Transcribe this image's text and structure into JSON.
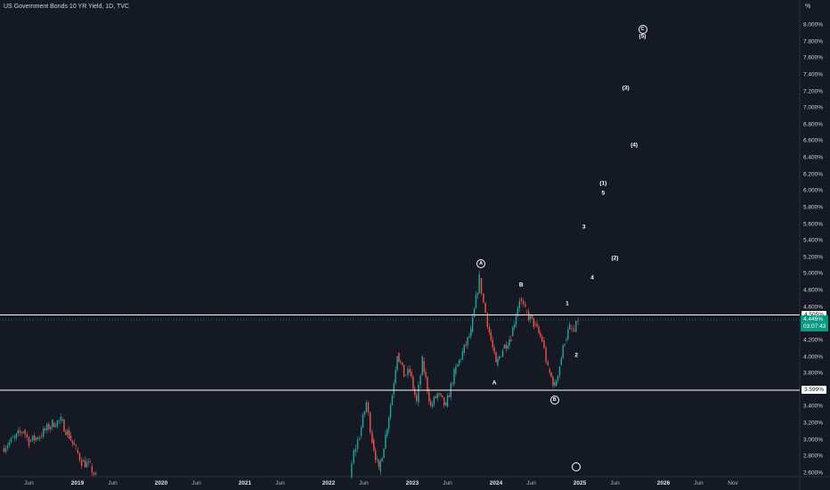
{
  "header": {
    "title": "US Government Bonds 10 YR Yield, 1D, TVC",
    "unit": "%"
  },
  "colors": {
    "background": "#151924",
    "up": "#26a69a",
    "down": "#ef5350",
    "level": "#ffffff",
    "current": "#089981"
  },
  "chart_data": {
    "type": "candlestick",
    "ylim": [
      2.5,
      8.2
    ],
    "y_ticks": [
      "8.000%",
      "7.800%",
      "7.600%",
      "7.400%",
      "7.200%",
      "7.000%",
      "6.800%",
      "6.600%",
      "6.400%",
      "6.200%",
      "6.000%",
      "5.800%",
      "5.600%",
      "5.400%",
      "5.200%",
      "5.000%",
      "4.800%",
      "4.600%",
      "4.400%",
      "4.200%",
      "4.000%",
      "3.800%",
      "3.600%",
      "3.400%",
      "3.200%",
      "3.000%",
      "2.800%",
      "2.600%"
    ],
    "x_ticks": [
      {
        "label": "Jun",
        "t": 2018.42,
        "major": false
      },
      {
        "label": "2019",
        "t": 2019.0,
        "major": true
      },
      {
        "label": "Jun",
        "t": 2019.42,
        "major": false
      },
      {
        "label": "2020",
        "t": 2020.0,
        "major": true
      },
      {
        "label": "Jun",
        "t": 2020.42,
        "major": false
      },
      {
        "label": "2021",
        "t": 2021.0,
        "major": true
      },
      {
        "label": "Jun",
        "t": 2021.42,
        "major": false
      },
      {
        "label": "2022",
        "t": 2022.0,
        "major": true
      },
      {
        "label": "Jun",
        "t": 2022.42,
        "major": false
      },
      {
        "label": "2023",
        "t": 2023.0,
        "major": true
      },
      {
        "label": "Jun",
        "t": 2023.42,
        "major": false
      },
      {
        "label": "2024",
        "t": 2024.0,
        "major": true
      },
      {
        "label": "Jun",
        "t": 2024.42,
        "major": false
      },
      {
        "label": "2025",
        "t": 2025.0,
        "major": true
      },
      {
        "label": "Jun",
        "t": 2025.42,
        "major": false
      },
      {
        "label": "2026",
        "t": 2026.0,
        "major": true
      },
      {
        "label": "Jun",
        "t": 2026.42,
        "major": false
      },
      {
        "label": "Nov",
        "t": 2026.83,
        "major": false
      }
    ],
    "price_path": [
      [
        2018.1,
        2.9
      ],
      [
        2018.25,
        3.02
      ],
      [
        2018.35,
        3.12
      ],
      [
        2018.42,
        2.98
      ],
      [
        2018.55,
        3.05
      ],
      [
        2018.7,
        3.2
      ],
      [
        2018.8,
        3.23
      ],
      [
        2018.9,
        3.05
      ],
      [
        2018.98,
        2.88
      ],
      [
        2019.05,
        2.74
      ],
      [
        2019.15,
        2.68
      ],
      [
        2019.22,
        2.55
      ],
      [
        2022.25,
        2.55
      ],
      [
        2022.3,
        2.85
      ],
      [
        2022.37,
        3.05
      ],
      [
        2022.45,
        3.45
      ],
      [
        2022.52,
        3.0
      ],
      [
        2022.6,
        2.62
      ],
      [
        2022.68,
        3.05
      ],
      [
        2022.76,
        3.55
      ],
      [
        2022.82,
        4.05
      ],
      [
        2022.9,
        3.78
      ],
      [
        2022.97,
        3.82
      ],
      [
        2023.05,
        3.45
      ],
      [
        2023.12,
        3.95
      ],
      [
        2023.22,
        3.4
      ],
      [
        2023.3,
        3.55
      ],
      [
        2023.4,
        3.4
      ],
      [
        2023.5,
        3.8
      ],
      [
        2023.6,
        4.05
      ],
      [
        2023.7,
        4.3
      ],
      [
        2023.8,
        4.95
      ],
      [
        2023.85,
        4.65
      ],
      [
        2023.92,
        4.3
      ],
      [
        2024.0,
        3.9
      ],
      [
        2024.08,
        4.1
      ],
      [
        2024.18,
        4.25
      ],
      [
        2024.28,
        4.7
      ],
      [
        2024.35,
        4.55
      ],
      [
        2024.45,
        4.4
      ],
      [
        2024.55,
        4.2
      ],
      [
        2024.62,
        3.85
      ],
      [
        2024.7,
        3.65
      ],
      [
        2024.76,
        3.9
      ],
      [
        2024.82,
        4.2
      ],
      [
        2024.88,
        4.35
      ],
      [
        2024.93,
        4.3
      ],
      [
        2024.98,
        4.45
      ]
    ],
    "horizontal_levels": [
      {
        "value": 4.505,
        "label": "4.505%"
      },
      {
        "value": 3.599,
        "label": "3.599%"
      }
    ],
    "current_price": {
      "value": 4.446,
      "label": "4.446%",
      "countdown": "03:07:43"
    },
    "wave_labels": [
      {
        "text": "A",
        "t": 2023.82,
        "y": 5.12,
        "circled": true
      },
      {
        "text": "B",
        "t": 2024.3,
        "y": 4.86,
        "circled": false
      },
      {
        "text": "1",
        "t": 2024.85,
        "y": 4.64,
        "circled": false
      },
      {
        "text": "2",
        "t": 2024.96,
        "y": 4.02,
        "circled": false
      },
      {
        "text": "A",
        "t": 2023.98,
        "y": 3.68,
        "circled": false
      },
      {
        "text": "B",
        "t": 2024.7,
        "y": 3.48,
        "circled": true
      },
      {
        "text": "3",
        "t": 2025.05,
        "y": 5.56,
        "circled": false
      },
      {
        "text": "4",
        "t": 2025.15,
        "y": 4.95,
        "circled": false
      },
      {
        "text": "5",
        "t": 2025.28,
        "y": 5.97,
        "circled": false
      },
      {
        "text": "(1)",
        "t": 2025.28,
        "y": 6.09,
        "circled": false
      },
      {
        "text": "(2)",
        "t": 2025.42,
        "y": 5.19,
        "circled": false
      },
      {
        "text": "(3)",
        "t": 2025.55,
        "y": 7.24,
        "circled": false
      },
      {
        "text": "(4)",
        "t": 2025.65,
        "y": 6.55,
        "circled": false
      },
      {
        "text": "C",
        "t": 2025.75,
        "y": 7.95,
        "circled": true
      },
      {
        "text": "(5)",
        "t": 2025.75,
        "y": 7.86,
        "circled": false
      },
      {
        "text": "",
        "t": 2024.96,
        "y": 2.68,
        "circled": true
      }
    ]
  }
}
